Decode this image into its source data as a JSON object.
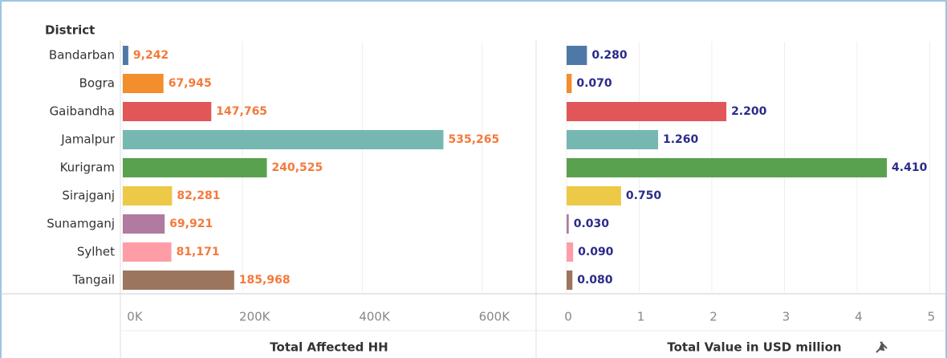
{
  "chart_data": [
    {
      "type": "bar",
      "row_header": "District",
      "categories": [
        "Bandarban",
        "Bogra",
        "Gaibandha",
        "Jamalpur",
        "Kurigram",
        "Sirajganj",
        "Sunamganj",
        "Sylhet",
        "Tangail"
      ],
      "values": [
        9242,
        67945,
        147765,
        535265,
        240525,
        82281,
        69921,
        81171,
        185968
      ],
      "value_labels": [
        "9,242",
        "67,945",
        "147,765",
        "535,265",
        "240,525",
        "82,281",
        "69,921",
        "81,171",
        "185,968"
      ],
      "colors": [
        "#4e79a7",
        "#f28e2b",
        "#e15759",
        "#76b7b2",
        "#59a14f",
        "#edc948",
        "#b07aa1",
        "#ff9da7",
        "#9c755f"
      ],
      "xlabel": "Total Affected HH",
      "xlim": [
        0,
        690000
      ],
      "xticks": [
        {
          "value": 0,
          "label": "0K"
        },
        {
          "value": 200000,
          "label": "200K"
        },
        {
          "value": 400000,
          "label": "400K"
        },
        {
          "value": 600000,
          "label": "600K"
        }
      ],
      "grid": true
    },
    {
      "type": "bar",
      "values": [
        0.28,
        0.07,
        2.2,
        1.26,
        4.41,
        0.75,
        0.03,
        0.09,
        0.08
      ],
      "value_labels": [
        "0.280",
        "0.070",
        "2.200",
        "1.260",
        "4.410",
        "0.750",
        "0.030",
        "0.090",
        "0.080"
      ],
      "colors": [
        "#4e79a7",
        "#f28e2b",
        "#e15759",
        "#76b7b2",
        "#59a14f",
        "#edc948",
        "#b07aa1",
        "#ff9da7",
        "#9c755f"
      ],
      "xlabel": "Total Value in USD million",
      "xlim": [
        0,
        5.15
      ],
      "xticks": [
        0,
        1,
        2,
        3,
        4,
        5
      ],
      "grid": true
    }
  ]
}
